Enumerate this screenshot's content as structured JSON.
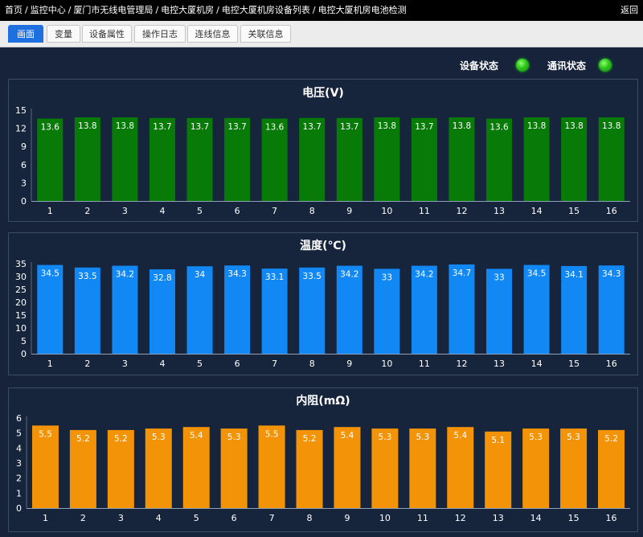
{
  "breadcrumb": [
    "首页",
    "监控中心",
    "厦门市无线电管理局",
    "电控大厦机房",
    "电控大厦机房设备列表",
    "电控大厦机房电池检测"
  ],
  "back_label": "返回",
  "tabs": [
    {
      "label": "画面",
      "active": true
    },
    {
      "label": "变量",
      "active": false
    },
    {
      "label": "设备属性",
      "active": false
    },
    {
      "label": "操作日志",
      "active": false
    },
    {
      "label": "连线信息",
      "active": false
    },
    {
      "label": "关联信息",
      "active": false
    }
  ],
  "status": {
    "device_label": "设备状态",
    "comm_label": "通讯状态",
    "ok_color": "#2ec41a"
  },
  "chart_data": [
    {
      "type": "bar",
      "title": "电压(V)",
      "categories": [
        "1",
        "2",
        "3",
        "4",
        "5",
        "6",
        "7",
        "8",
        "9",
        "10",
        "11",
        "12",
        "13",
        "14",
        "15",
        "16"
      ],
      "values": [
        13.6,
        13.8,
        13.8,
        13.7,
        13.7,
        13.7,
        13.6,
        13.7,
        13.7,
        13.8,
        13.7,
        13.8,
        13.6,
        13.8,
        13.8,
        13.8
      ],
      "ylim": [
        0,
        15
      ],
      "yticks": [
        0,
        3,
        6,
        9,
        12,
        15
      ],
      "color": "#087a08"
    },
    {
      "type": "bar",
      "title": "温度(℃)",
      "categories": [
        "1",
        "2",
        "3",
        "4",
        "5",
        "6",
        "7",
        "8",
        "9",
        "10",
        "11",
        "12",
        "13",
        "14",
        "15",
        "16"
      ],
      "values": [
        34.5,
        33.5,
        34.2,
        32.8,
        34,
        34.3,
        33.1,
        33.5,
        34.2,
        33,
        34.2,
        34.7,
        33,
        34.5,
        34.1,
        34.3
      ],
      "ylim": [
        0,
        35
      ],
      "yticks": [
        0,
        5,
        10,
        15,
        20,
        25,
        30,
        35
      ],
      "color": "#1188f4"
    },
    {
      "type": "bar",
      "title": "内阻(mΩ)",
      "categories": [
        "1",
        "2",
        "3",
        "4",
        "5",
        "6",
        "7",
        "8",
        "9",
        "10",
        "11",
        "12",
        "13",
        "14",
        "15",
        "16"
      ],
      "values": [
        5.5,
        5.2,
        5.2,
        5.3,
        5.4,
        5.3,
        5.5,
        5.2,
        5.4,
        5.3,
        5.3,
        5.4,
        5.1,
        5.3,
        5.3,
        5.2
      ],
      "ylim": [
        0,
        6
      ],
      "yticks": [
        0,
        1,
        2,
        3,
        4,
        5,
        6
      ],
      "color": "#f39408"
    }
  ]
}
